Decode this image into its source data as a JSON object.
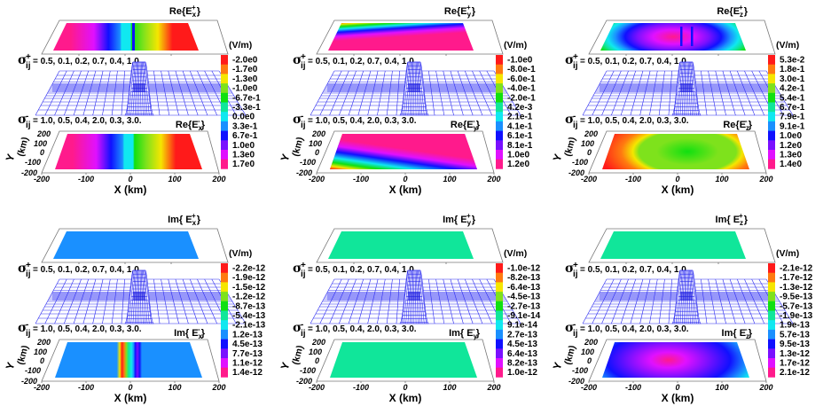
{
  "chart_data": [
    {
      "type": "heatmap",
      "panel": "Re{Ex}",
      "top_title": {
        "prefix": "Re{E",
        "sub": "x",
        "sup": "+",
        "suffix": "}"
      },
      "bottom_title": {
        "prefix": "Re{E",
        "sub": "x",
        "sup": "-",
        "suffix": "}"
      },
      "unit": "(V/m)",
      "colorbar": [
        "-2.0e0",
        "-1.7e0",
        "-1.3e0",
        "-1.0e0",
        "-6.7e-1",
        "-3.3e-1",
        "0.0e0",
        "3.3e-1",
        "6.7e-1",
        "1.0e0",
        "1.3e0",
        "1.7e0"
      ],
      "top_pattern": "ex",
      "bottom_pattern": "ex",
      "show_y_axis": true
    },
    {
      "type": "heatmap",
      "panel": "Re{Ey}",
      "top_title": {
        "prefix": "Re{E",
        "sub": "y",
        "sup": "+",
        "suffix": "}"
      },
      "bottom_title": {
        "prefix": "Re{E",
        "sub": "y",
        "sup": "-",
        "suffix": "}"
      },
      "unit": "(V/m)",
      "colorbar": [
        "-1.0e0",
        "-8.0e-1",
        "-6.0e-1",
        "-4.0e-1",
        "-2.0e-1",
        "4.2e-3",
        "2.1e-1",
        "4.1e-1",
        "6.1e-1",
        "8.1e-1",
        "1.0e0",
        "1.2e0"
      ],
      "top_pattern": "ey",
      "bottom_pattern": "ey",
      "show_y_axis": true
    },
    {
      "type": "heatmap",
      "panel": "Re{Ez}",
      "top_title": {
        "prefix": "Re{E",
        "sub": "z",
        "sup": "+",
        "suffix": "}"
      },
      "bottom_title": {
        "prefix": "Re{E",
        "sub": "z",
        "sup": "-",
        "suffix": "}"
      },
      "unit": "(V/m)",
      "colorbar": [
        "5.3e-2",
        "1.8e-1",
        "3.0e-1",
        "4.2e-1",
        "5.4e-1",
        "6.7e-1",
        "7.9e-1",
        "9.1e-1",
        "1.0e0",
        "1.2e0",
        "1.3e0",
        "1.4e0"
      ],
      "top_pattern": "ez_top",
      "bottom_pattern": "ez_bottom",
      "show_y_axis": true
    },
    {
      "type": "heatmap",
      "panel": "Im{Ex}",
      "top_title": {
        "prefix": "Im{ E",
        "sub": "x",
        "sup": "+",
        "suffix": "}"
      },
      "bottom_title": {
        "prefix": "Im{ E",
        "sub": "x",
        "sup": "-",
        "suffix": "}"
      },
      "unit": "(V/m)",
      "colorbar": [
        "-2.2e-12",
        "-1.9e-12",
        "-1.5e-12",
        "-1.2e-12",
        "-8.7e-13",
        "-5.4e-13",
        "-2.1e-13",
        "1.2e-13",
        "4.5e-13",
        "7.7e-13",
        "1.1e-12",
        "1.4e-12"
      ],
      "top_pattern": "flat_blue",
      "bottom_pattern": "imex",
      "show_y_axis": true
    },
    {
      "type": "heatmap",
      "panel": "Im{Ey}",
      "top_title": {
        "prefix": "Im{ E",
        "sub": "y",
        "sup": "+",
        "suffix": "}"
      },
      "bottom_title": {
        "prefix": "Im{ E",
        "sub": "y",
        "sup": "-",
        "suffix": "}"
      },
      "unit": "(V/m)",
      "colorbar": [
        "-1.0e-12",
        "-8.2e-13",
        "-6.4e-13",
        "-4.5e-13",
        "-2.7e-13",
        "-9.1e-14",
        "9.1e-14",
        "2.7e-13",
        "4.5e-13",
        "6.4e-13",
        "8.2e-13",
        "1.0e-12"
      ],
      "top_pattern": "flat_teal",
      "bottom_pattern": "flat_teal",
      "show_y_axis": true
    },
    {
      "type": "heatmap",
      "panel": "Im{Ez}",
      "top_title": {
        "prefix": "Im{ E",
        "sub": "z",
        "sup": "+",
        "suffix": "}"
      },
      "bottom_title": {
        "prefix": "Im{ E",
        "sub": "z",
        "sup": "-",
        "suffix": "}"
      },
      "unit": "(V/m)",
      "colorbar": [
        "-2.1e-12",
        "-1.7e-12",
        "-1.3e-12",
        "-9.5e-13",
        "-5.7e-13",
        "-1.9e-13",
        "1.9e-13",
        "5.7e-13",
        "9.5e-13",
        "1.3e-12",
        "1.7e-12",
        "2.1e-12"
      ],
      "top_pattern": "flat_teal",
      "bottom_pattern": "imez",
      "show_y_axis": true
    }
  ],
  "shared": {
    "sigma_plus": {
      "sup": "+",
      "sub": "ij",
      "values": "= 0.5, 0.1, 0.2, 0.7, 0.4, 1.0."
    },
    "sigma_minus": {
      "sup": "-",
      "sub": "ij",
      "values": "= 1.0, 0.5, 0.4, 2.0, 0.3, 3.0."
    },
    "x_ticks": [
      "-200",
      "-100",
      "0",
      "100",
      "200"
    ],
    "y_ticks": [
      "200",
      "100",
      "0",
      "-100",
      "-200"
    ],
    "x_label": "X  (km)",
    "y_label": "Y",
    "y_unit": "(km)",
    "colorbar_colors": [
      "#ff1a1a",
      "#ff7a10",
      "#f5e600",
      "#7ee21c",
      "#10e010",
      "#10e69a",
      "#10e8f0",
      "#1a90ff",
      "#1010ff",
      "#7a10ff",
      "#e010ff",
      "#ff1a8c"
    ]
  }
}
